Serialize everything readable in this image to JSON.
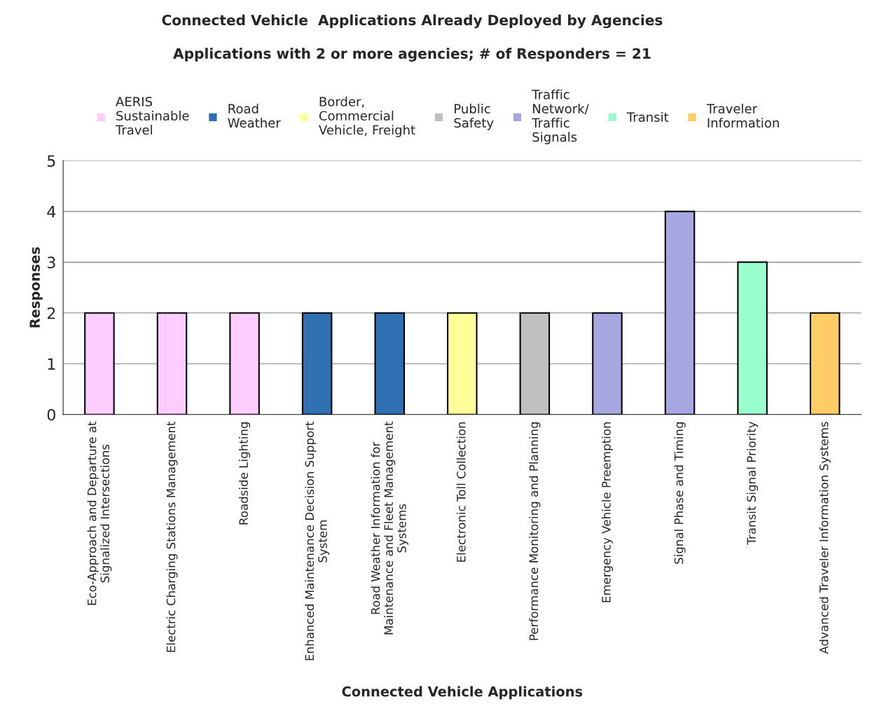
{
  "chart_data": {
    "type": "bar",
    "title": "Connected Vehicle  Applications Already Deployed by Agencies",
    "subtitle": "Applications with 2 or more agencies; # of Responders = 21",
    "xlabel": "Connected Vehicle Applications",
    "ylabel": "Responses",
    "categories": [
      "Eco-Approach and Departure at\nSignalized Intersections",
      "Electric Charging Stations Management",
      "Roadside Lighting",
      "Enhanced Maintenance Decision Support\nSystem",
      "Road Weather Information for\nMaintenance and Fleet Management\nSystems",
      "Electronic Toll Collection",
      "Performance Monitoring and Planning",
      "Emergency Vehicle Preemption",
      "Signal Phase and Timing",
      "Transit Signal Priority",
      "Advanced Traveler Information Systems"
    ],
    "series": [
      {
        "name": "AERIS\nSustainable\nTravel",
        "color": "#ffccff",
        "values": [
          2,
          2,
          2,
          null,
          null,
          null,
          null,
          null,
          null,
          null,
          null
        ]
      },
      {
        "name": "Road\nWeather",
        "color": "#2e70b2",
        "values": [
          null,
          null,
          null,
          2,
          2,
          null,
          null,
          null,
          null,
          null,
          null
        ]
      },
      {
        "name": "Border,\nCommercial\nVehicle, Freight",
        "color": "#ffff99",
        "values": [
          null,
          null,
          null,
          null,
          null,
          2,
          null,
          null,
          null,
          null,
          null
        ]
      },
      {
        "name": "Public\nSafety",
        "color": "#c0c0c0",
        "values": [
          null,
          null,
          null,
          null,
          null,
          null,
          2,
          null,
          null,
          null,
          null
        ]
      },
      {
        "name": "Traffic\nNetwork/\nTraffic\nSignals",
        "color": "#a6a6e0",
        "values": [
          null,
          null,
          null,
          null,
          null,
          null,
          null,
          2,
          4,
          null,
          null
        ]
      },
      {
        "name": "Transit",
        "color": "#99ffcc",
        "values": [
          null,
          null,
          null,
          null,
          null,
          null,
          null,
          null,
          null,
          3,
          null
        ]
      },
      {
        "name": "Traveler\nInformation",
        "color": "#ffcc66",
        "values": [
          null,
          null,
          null,
          null,
          null,
          null,
          null,
          null,
          null,
          null,
          2
        ]
      }
    ],
    "ylim": [
      0,
      5
    ],
    "yticks": [
      0,
      1,
      2,
      3,
      4,
      5
    ],
    "grid": "y",
    "legend": "top"
  }
}
